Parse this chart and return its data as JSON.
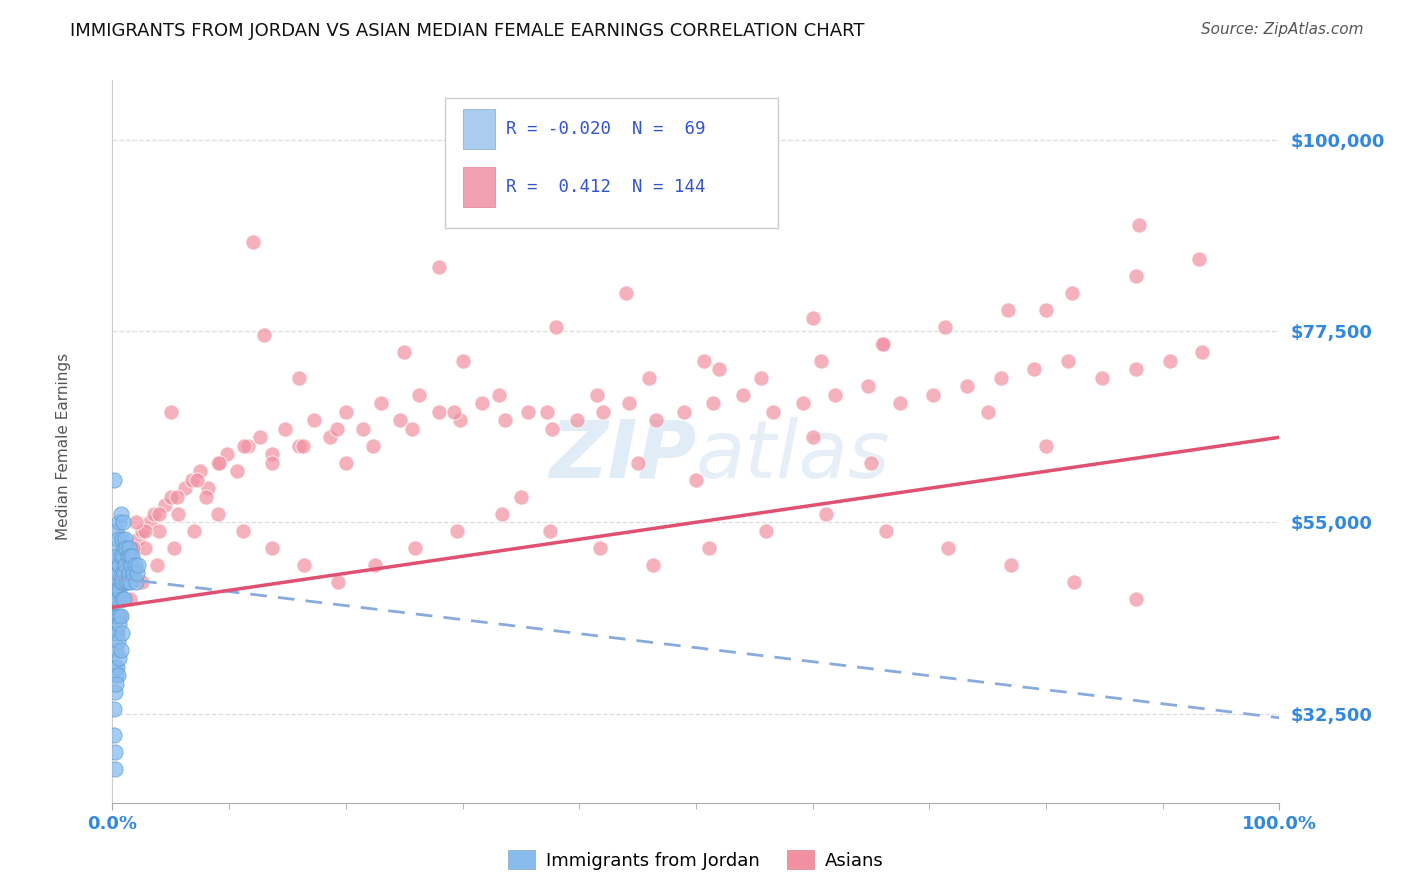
{
  "title": "IMMIGRANTS FROM JORDAN VS ASIAN MEDIAN FEMALE EARNINGS CORRELATION CHART",
  "source_text": "Source: ZipAtlas.com",
  "ylabel": "Median Female Earnings",
  "xlim": [
    0,
    1
  ],
  "ylim": [
    22000,
    107000
  ],
  "yticks": [
    32500,
    55000,
    77500,
    100000
  ],
  "ytick_labels": [
    "$32,500",
    "$55,000",
    "$77,500",
    "$100,000"
  ],
  "xtick_labels": [
    "0.0%",
    "100.0%"
  ],
  "series1_color": "#88bbee",
  "series2_color": "#f090a0",
  "trendline1_color": "#88aadd",
  "trendline2_color": "#e05070",
  "background_color": "#ffffff",
  "jordan_x": [
    0.001,
    0.001,
    0.001,
    0.002,
    0.002,
    0.002,
    0.002,
    0.003,
    0.003,
    0.003,
    0.003,
    0.004,
    0.004,
    0.004,
    0.005,
    0.005,
    0.005,
    0.006,
    0.006,
    0.006,
    0.006,
    0.007,
    0.007,
    0.007,
    0.008,
    0.008,
    0.008,
    0.009,
    0.009,
    0.009,
    0.01,
    0.01,
    0.01,
    0.011,
    0.011,
    0.012,
    0.012,
    0.013,
    0.013,
    0.014,
    0.014,
    0.015,
    0.015,
    0.016,
    0.017,
    0.018,
    0.019,
    0.02,
    0.021,
    0.022,
    0.002,
    0.002,
    0.003,
    0.003,
    0.004,
    0.004,
    0.005,
    0.005,
    0.006,
    0.006,
    0.007,
    0.007,
    0.008,
    0.001,
    0.001,
    0.002,
    0.003,
    0.002,
    0.001
  ],
  "jordan_y": [
    48000,
    44000,
    42000,
    50000,
    46000,
    44000,
    52000,
    54000,
    48000,
    46000,
    42000,
    51000,
    47000,
    44000,
    53000,
    49000,
    46000,
    55000,
    50000,
    47000,
    44000,
    56000,
    51000,
    48000,
    53000,
    49000,
    46000,
    55000,
    51000,
    48000,
    52000,
    49000,
    46000,
    53000,
    50000,
    52000,
    48000,
    51000,
    48000,
    52000,
    49000,
    51000,
    48000,
    50000,
    51000,
    49000,
    50000,
    48000,
    49000,
    50000,
    38000,
    35000,
    40000,
    37000,
    42000,
    38000,
    41000,
    37000,
    43000,
    39000,
    44000,
    40000,
    42000,
    30000,
    33000,
    28000,
    36000,
    26000,
    60000
  ],
  "asian_x": [
    0.004,
    0.006,
    0.008,
    0.01,
    0.013,
    0.016,
    0.019,
    0.022,
    0.025,
    0.028,
    0.032,
    0.036,
    0.04,
    0.045,
    0.05,
    0.056,
    0.062,
    0.068,
    0.075,
    0.082,
    0.09,
    0.098,
    0.107,
    0.116,
    0.126,
    0.137,
    0.148,
    0.16,
    0.173,
    0.186,
    0.2,
    0.215,
    0.23,
    0.246,
    0.263,
    0.28,
    0.298,
    0.317,
    0.336,
    0.356,
    0.377,
    0.398,
    0.42,
    0.443,
    0.466,
    0.49,
    0.515,
    0.54,
    0.566,
    0.592,
    0.619,
    0.647,
    0.675,
    0.703,
    0.732,
    0.761,
    0.79,
    0.819,
    0.848,
    0.877,
    0.906,
    0.934,
    0.005,
    0.01,
    0.018,
    0.028,
    0.04,
    0.055,
    0.072,
    0.091,
    0.113,
    0.137,
    0.163,
    0.192,
    0.223,
    0.257,
    0.293,
    0.331,
    0.372,
    0.415,
    0.46,
    0.507,
    0.556,
    0.607,
    0.659,
    0.713,
    0.767,
    0.822,
    0.877,
    0.931,
    0.007,
    0.015,
    0.025,
    0.038,
    0.053,
    0.07,
    0.09,
    0.112,
    0.137,
    0.164,
    0.193,
    0.225,
    0.259,
    0.295,
    0.334,
    0.375,
    0.418,
    0.463,
    0.511,
    0.56,
    0.611,
    0.663,
    0.716,
    0.77,
    0.824,
    0.877,
    0.13,
    0.25,
    0.38,
    0.52,
    0.66,
    0.8,
    0.05,
    0.16,
    0.3,
    0.45,
    0.6,
    0.75,
    0.88,
    0.02,
    0.08,
    0.2,
    0.35,
    0.5,
    0.65,
    0.8,
    0.12,
    0.28,
    0.44,
    0.6
  ],
  "asian_y": [
    46000,
    47000,
    48000,
    49000,
    50000,
    51000,
    52000,
    53000,
    54000,
    52000,
    55000,
    56000,
    54000,
    57000,
    58000,
    56000,
    59000,
    60000,
    61000,
    59000,
    62000,
    63000,
    61000,
    64000,
    65000,
    63000,
    66000,
    64000,
    67000,
    65000,
    68000,
    66000,
    69000,
    67000,
    70000,
    68000,
    67000,
    69000,
    67000,
    68000,
    66000,
    67000,
    68000,
    69000,
    67000,
    68000,
    69000,
    70000,
    68000,
    69000,
    70000,
    71000,
    69000,
    70000,
    71000,
    72000,
    73000,
    74000,
    72000,
    73000,
    74000,
    75000,
    48000,
    50000,
    52000,
    54000,
    56000,
    58000,
    60000,
    62000,
    64000,
    62000,
    64000,
    66000,
    64000,
    66000,
    68000,
    70000,
    68000,
    70000,
    72000,
    74000,
    72000,
    74000,
    76000,
    78000,
    80000,
    82000,
    84000,
    86000,
    44000,
    46000,
    48000,
    50000,
    52000,
    54000,
    56000,
    54000,
    52000,
    50000,
    48000,
    50000,
    52000,
    54000,
    56000,
    54000,
    52000,
    50000,
    52000,
    54000,
    56000,
    54000,
    52000,
    50000,
    48000,
    46000,
    77000,
    75000,
    78000,
    73000,
    76000,
    80000,
    68000,
    72000,
    74000,
    62000,
    65000,
    68000,
    90000,
    55000,
    58000,
    62000,
    58000,
    60000,
    62000,
    64000,
    88000,
    85000,
    82000,
    79000
  ]
}
